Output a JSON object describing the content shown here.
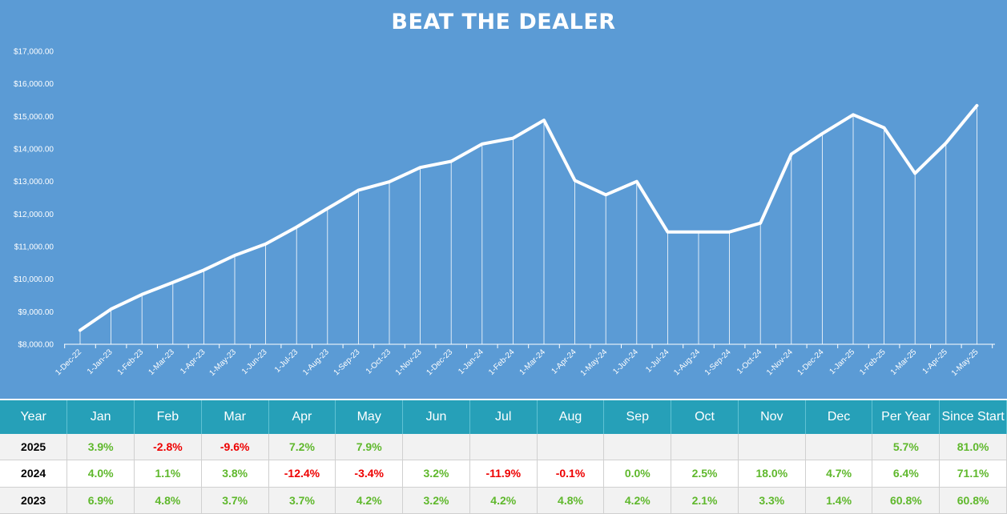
{
  "chart_data": {
    "type": "line",
    "title": "BEAT THE DEALER",
    "x": [
      "1-Dec-22",
      "1-Jan-23",
      "1-Feb-23",
      "1-Mar-23",
      "1-Apr-23",
      "1-May-23",
      "1-Jun-23",
      "1-Jul-23",
      "1-Aug-23",
      "1-Sep-23",
      "1-Oct-23",
      "1-Nov-23",
      "1-Dec-23",
      "1-Jan-24",
      "1-Feb-24",
      "1-Mar-24",
      "1-Apr-24",
      "1-May-24",
      "1-Jun-24",
      "1-Jul-24",
      "1-Aug-24",
      "1-Sep-24",
      "1-Oct-24",
      "1-Nov-24",
      "1-Dec-24",
      "1-Jan-25",
      "1-Feb-25",
      "1-Mar-25",
      "1-Apr-25",
      "1-May-25"
    ],
    "series": [
      {
        "values": [
          8430,
          9080,
          9530,
          9900,
          10280,
          10730,
          11080,
          11600,
          12170,
          12730,
          12990,
          13430,
          13620,
          14150,
          14330,
          14880,
          13030,
          12590,
          13000,
          11450,
          11450,
          11450,
          11720,
          13840,
          14470,
          15050,
          14650,
          13250,
          14180,
          15330
        ]
      }
    ],
    "xlabel": "",
    "ylabel": "",
    "ylim": [
      8000,
      17000
    ],
    "yticks": [
      "$8,000.00",
      "$9,000.00",
      "$10,000.00",
      "$11,000.00",
      "$12,000.00",
      "$13,000.00",
      "$14,000.00",
      "$15,000.00",
      "$16,000.00",
      "$17,000.00"
    ],
    "drop_lines": true,
    "grid": false,
    "colors": {
      "background": "#5b9bd5",
      "line": "#ffffff"
    }
  },
  "table": {
    "headers": [
      "Year",
      "Jan",
      "Feb",
      "Mar",
      "Apr",
      "May",
      "Jun",
      "Jul",
      "Aug",
      "Sep",
      "Oct",
      "Nov",
      "Dec",
      "Per Year",
      "Since Start"
    ],
    "rows": [
      {
        "year": "2025",
        "cells": [
          "3.9%",
          "-2.8%",
          "-9.6%",
          "7.2%",
          "7.9%",
          "",
          "",
          "",
          "",
          "",
          "",
          "",
          "5.7%",
          "81.0%"
        ]
      },
      {
        "year": "2024",
        "cells": [
          "4.0%",
          "1.1%",
          "3.8%",
          "-12.4%",
          "-3.4%",
          "3.2%",
          "-11.9%",
          "-0.1%",
          "0.0%",
          "2.5%",
          "18.0%",
          "4.7%",
          "6.4%",
          "71.1%"
        ]
      },
      {
        "year": "2023",
        "cells": [
          "6.9%",
          "4.8%",
          "3.7%",
          "3.7%",
          "4.2%",
          "3.2%",
          "4.2%",
          "4.8%",
          "4.2%",
          "2.1%",
          "3.3%",
          "1.4%",
          "60.8%",
          "60.8%"
        ]
      }
    ],
    "colors": {
      "header_bg": "#26a0b8",
      "positive": "#5fb82c",
      "negative": "#ee0000"
    }
  }
}
